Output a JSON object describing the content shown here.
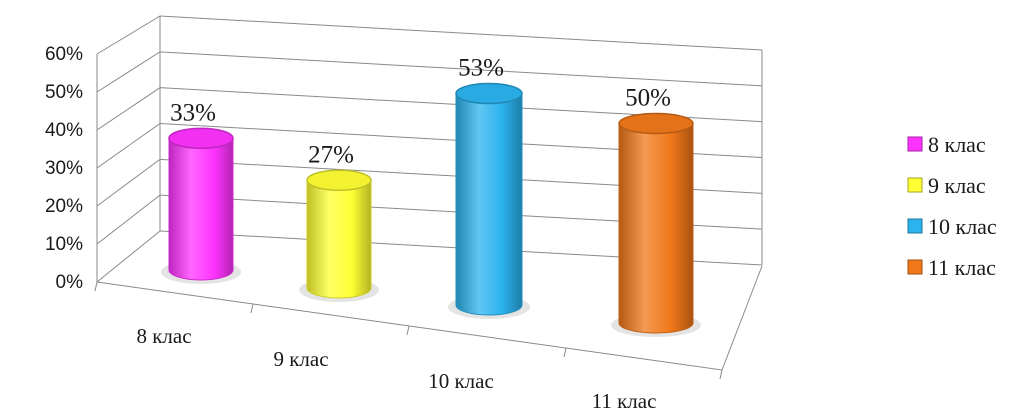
{
  "chart_data": {
    "type": "bar",
    "style": "3d-cylinder",
    "categories": [
      "8 клас",
      "9 клас",
      "10 клас",
      "11 клас"
    ],
    "values": [
      33,
      27,
      53,
      50
    ],
    "data_labels": [
      "33%",
      "27%",
      "53%",
      "50%"
    ],
    "ylim": [
      0,
      60
    ],
    "yticks": [
      "0%",
      "10%",
      "20%",
      "30%",
      "40%",
      "50%",
      "60%"
    ],
    "title": "",
    "xlabel": "",
    "ylabel": "",
    "grid": true,
    "legend": {
      "placement": "right",
      "entries": [
        {
          "label": "8 клас",
          "color": "#ff33ff"
        },
        {
          "label": "9 клас",
          "color": "#ffff33"
        },
        {
          "label": "10 клас",
          "color": "#2bb3ee"
        },
        {
          "label": "11 клас",
          "color": "#f0781a"
        }
      ]
    },
    "colors": [
      "#ff33ff",
      "#ffff33",
      "#2bb3ee",
      "#f0781a"
    ]
  }
}
